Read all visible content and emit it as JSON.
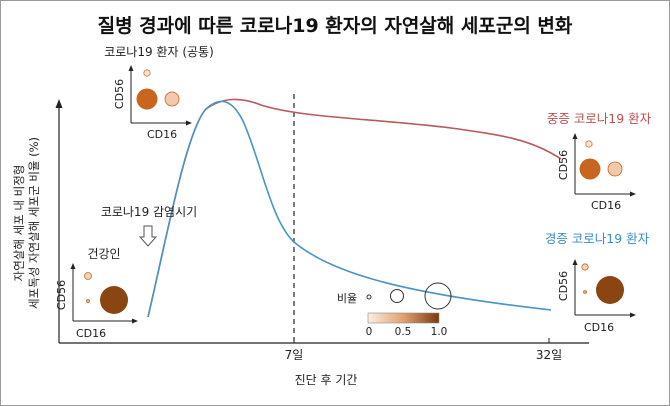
{
  "title": "질병 경과에 따른 코로나19 환자의 자연살해 세포군의 변화",
  "y_axis_title_line1": "자연살해 세포 내 비정형",
  "y_axis_title_line2": "세포독성 자연살해 세포군 비율 (%)",
  "x_axis_title": "진단 후 기간",
  "x_ticks": [
    "7일",
    "32일"
  ],
  "infection_label": "코로나19 감염시기",
  "healthy_label": "건강인",
  "common_label": "코로나19 환자 (공통)",
  "severe_label": "중증 코로나19 환자",
  "mild_label": "경증 코로나19 환자",
  "inset_x_label": "CD16",
  "inset_y_label": "CD56",
  "legend_title": "비율",
  "colorbar_ticks": [
    "0",
    "0.5",
    "1.0"
  ],
  "colors": {
    "severe_line": "#b85a5a",
    "mild_line": "#4a94c4",
    "severe_label": "#b9504f",
    "mild_label": "#3a8fc0",
    "dark_dot": "#8b4513",
    "mid_dot": "#c8651f",
    "light_dot": "#f2c9aa"
  }
}
